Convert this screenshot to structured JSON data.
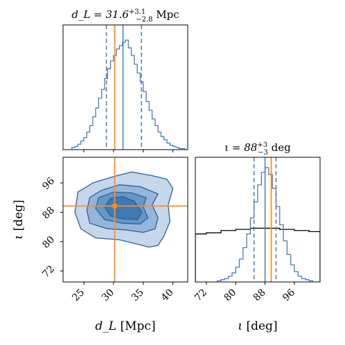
{
  "chart_data": [
    {
      "type": "histogram",
      "panel": "dL-marginal",
      "title": {
        "main": "d_L = 31.6",
        "sup": "+3.1",
        "sub": "−2.8",
        "unit": " Mpc"
      },
      "xlim": [
        21.5,
        42.5
      ],
      "x_ticks": [
        25,
        30,
        35,
        40
      ],
      "truth": 30.2,
      "median": 31.6,
      "quantiles": [
        28.8,
        34.7
      ],
      "colors": {
        "hist": "#4a7bb0",
        "truth": "#ff8c1a",
        "quantile": "#4a7bb0"
      },
      "bin_edges": [
        23.0,
        23.5,
        24.0,
        24.5,
        25.0,
        25.5,
        26.0,
        26.5,
        27.0,
        27.5,
        28.0,
        28.5,
        29.0,
        29.5,
        30.0,
        30.5,
        31.0,
        31.5,
        32.0,
        32.5,
        33.0,
        33.5,
        34.0,
        34.5,
        35.0,
        35.5,
        36.0,
        36.5,
        37.0,
        37.5,
        38.0,
        38.5,
        39.0,
        39.5,
        40.0,
        40.5,
        41.0,
        41.5,
        42.0
      ],
      "counts": [
        0.02,
        0.03,
        0.05,
        0.08,
        0.11,
        0.16,
        0.22,
        0.3,
        0.38,
        0.47,
        0.55,
        0.65,
        0.74,
        0.81,
        0.86,
        0.92,
        0.95,
        0.98,
        1.0,
        0.93,
        0.86,
        0.78,
        0.7,
        0.62,
        0.53,
        0.44,
        0.36,
        0.28,
        0.22,
        0.16,
        0.12,
        0.09,
        0.06,
        0.04,
        0.03,
        0.02,
        0.01,
        0.01
      ]
    },
    {
      "type": "contour",
      "panel": "dL-iota-joint",
      "xlim": [
        21.5,
        42.5
      ],
      "ylim": [
        69,
        103
      ],
      "x_ticks": [
        25,
        30,
        35,
        40
      ],
      "y_ticks": [
        72,
        80,
        88,
        96
      ],
      "xlabel": "d_L [Mpc]",
      "ylabel": "ι [deg]",
      "truth": [
        30.2,
        89.7
      ],
      "levels": [
        {
          "fill": "#c6d7ec",
          "points": [
            [
              23.5,
              88.0
            ],
            [
              24.5,
              83.5
            ],
            [
              27.0,
              81.0
            ],
            [
              31.0,
              80.5
            ],
            [
              33.5,
              79.5
            ],
            [
              36.0,
              78.5
            ],
            [
              37.5,
              79.0
            ],
            [
              38.5,
              81.5
            ],
            [
              39.5,
              85.5
            ],
            [
              39.2,
              90.0
            ],
            [
              40.0,
              94.5
            ],
            [
              39.0,
              97.0
            ],
            [
              36.5,
              98.0
            ],
            [
              33.0,
              99.0
            ],
            [
              29.5,
              97.5
            ],
            [
              26.5,
              96.0
            ],
            [
              24.0,
              93.5
            ]
          ]
        },
        {
          "fill": "#93b6da",
          "points": [
            [
              25.5,
              88.5
            ],
            [
              26.0,
              85.0
            ],
            [
              29.0,
              83.5
            ],
            [
              32.0,
              83.2
            ],
            [
              35.0,
              82.5
            ],
            [
              37.0,
              83.5
            ],
            [
              37.5,
              86.5
            ],
            [
              36.5,
              90.0
            ],
            [
              37.5,
              93.0
            ],
            [
              34.5,
              95.0
            ],
            [
              31.0,
              95.5
            ],
            [
              28.0,
              94.0
            ],
            [
              26.0,
              92.0
            ]
          ]
        },
        {
          "fill": "#6496c8",
          "points": [
            [
              27.0,
              89.0
            ],
            [
              28.5,
              86.0
            ],
            [
              31.5,
              85.0
            ],
            [
              34.5,
              84.8
            ],
            [
              35.8,
              86.5
            ],
            [
              35.0,
              89.5
            ],
            [
              35.5,
              92.0
            ],
            [
              33.0,
              93.3
            ],
            [
              30.0,
              93.5
            ],
            [
              27.5,
              92.0
            ]
          ]
        },
        {
          "fill": "#3f79b3",
          "points": [
            [
              28.5,
              89.5
            ],
            [
              29.5,
              87.0
            ],
            [
              31.5,
              86.2
            ],
            [
              34.0,
              86.0
            ],
            [
              34.8,
              88.0
            ],
            [
              33.5,
              91.0
            ],
            [
              31.5,
              92.3
            ],
            [
              29.5,
              91.8
            ]
          ]
        }
      ]
    },
    {
      "type": "histogram",
      "panel": "iota-marginal",
      "title": {
        "main": "ι = 88",
        "sup": "+3",
        "sub": "−3",
        "unit": " deg"
      },
      "xlim": [
        69,
        103
      ],
      "x_ticks": [
        72,
        80,
        88,
        96
      ],
      "xlabel": "ι [deg]",
      "truth": 89.7,
      "median": 88,
      "quantiles": [
        85,
        91
      ],
      "colors": {
        "hist": "#4a7bb0",
        "truth": "#ff8c1a",
        "quantile": "#4a7bb0",
        "prior": "#000000"
      },
      "bin_edges": [
        75,
        76,
        77,
        78,
        79,
        80,
        81,
        82,
        83,
        84,
        85,
        86,
        87,
        88,
        89,
        90,
        91,
        92,
        93,
        94,
        95,
        96,
        97,
        98,
        99,
        100,
        101
      ],
      "counts": [
        0.01,
        0.02,
        0.03,
        0.05,
        0.08,
        0.13,
        0.2,
        0.3,
        0.42,
        0.56,
        0.7,
        0.85,
        0.96,
        1.0,
        0.94,
        0.82,
        0.66,
        0.5,
        0.36,
        0.24,
        0.15,
        0.09,
        0.05,
        0.03,
        0.02,
        0.01
      ],
      "prior_edges": [
        69,
        72,
        76,
        80,
        84,
        88,
        92,
        96,
        100,
        103
      ],
      "prior_counts": [
        0.42,
        0.43,
        0.45,
        0.46,
        0.47,
        0.47,
        0.46,
        0.45,
        0.44
      ]
    }
  ]
}
